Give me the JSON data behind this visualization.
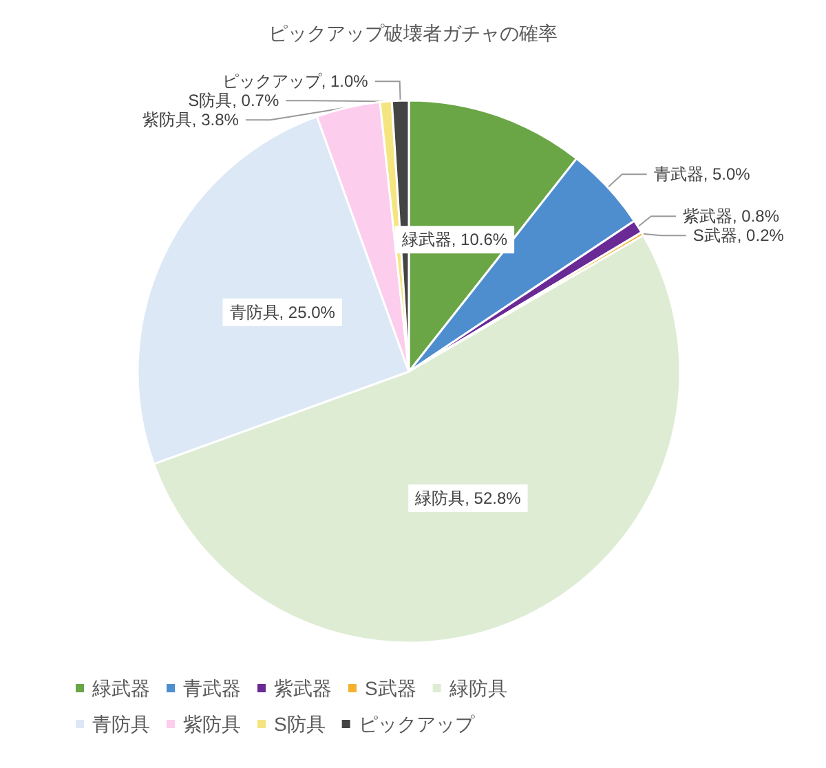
{
  "chart_data": {
    "type": "pie",
    "title": "ピックアップ破壊者ガチャの確率",
    "categories": [
      "緑武器",
      "青武器",
      "紫武器",
      "S武器",
      "緑防具",
      "青防具",
      "紫防具",
      "S防具",
      "ピックアップ"
    ],
    "values": [
      10.6,
      5.0,
      0.8,
      0.2,
      52.8,
      25.0,
      3.8,
      0.7,
      1.0
    ],
    "colors": [
      "#6aa546",
      "#4e8ecf",
      "#6a2a96",
      "#f5b12e",
      "#deecd4",
      "#dce8f5",
      "#fccdec",
      "#f5e580",
      "#444444"
    ],
    "value_labels": [
      ", 10.6%",
      ", 5.0%",
      ", 0.8%",
      ", 0.2%",
      ", 52.8%",
      ", 25.0%",
      ", 3.8%",
      ", 0.7%",
      ", 1.0%"
    ],
    "legend": "bottom"
  }
}
